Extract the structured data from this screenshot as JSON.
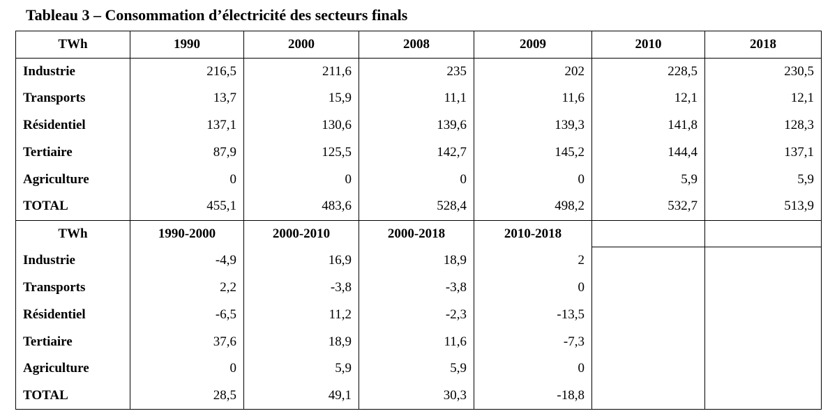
{
  "title": "Tableau 3 – Consommation d’électricité des secteurs finals",
  "table1": {
    "headers": [
      "TWh",
      "1990",
      "2000",
      "2008",
      "2009",
      "2010",
      "2018"
    ],
    "rows": [
      {
        "label": "Industrie",
        "values": [
          "216,5",
          "211,6",
          "235",
          "202",
          "228,5",
          "230,5"
        ]
      },
      {
        "label": "Transports",
        "values": [
          "13,7",
          "15,9",
          "11,1",
          "11,6",
          "12,1",
          "12,1"
        ]
      },
      {
        "label": "Résidentiel",
        "values": [
          "137,1",
          "130,6",
          "139,6",
          "139,3",
          "141,8",
          "128,3"
        ]
      },
      {
        "label": "Tertiaire",
        "values": [
          "87,9",
          "125,5",
          "142,7",
          "145,2",
          "144,4",
          "137,1"
        ]
      },
      {
        "label": "Agriculture",
        "values": [
          "0",
          "0",
          "0",
          "0",
          "5,9",
          "5,9"
        ]
      },
      {
        "label": "TOTAL",
        "values": [
          "455,1",
          "483,6",
          "528,4",
          "498,2",
          "532,7",
          "513,9"
        ]
      }
    ]
  },
  "table2": {
    "headers": [
      "TWh",
      "1990-2000",
      "2000-2010",
      "2000-2018",
      "2010-2018"
    ],
    "rows": [
      {
        "label": "Industrie",
        "values": [
          "-4,9",
          "16,9",
          "18,9",
          "2"
        ]
      },
      {
        "label": "Transports",
        "values": [
          "2,2",
          "-3,8",
          "-3,8",
          "0"
        ]
      },
      {
        "label": "Résidentiel",
        "values": [
          "-6,5",
          "11,2",
          "-2,3",
          "-13,5"
        ]
      },
      {
        "label": "Tertiaire",
        "values": [
          "37,6",
          "18,9",
          "11,6",
          "-7,3"
        ]
      },
      {
        "label": "Agriculture",
        "values": [
          "0",
          "5,9",
          "5,9",
          "0"
        ]
      },
      {
        "label": "TOTAL",
        "values": [
          "28,5",
          "49,1",
          "30,3",
          "-18,8"
        ]
      }
    ]
  }
}
